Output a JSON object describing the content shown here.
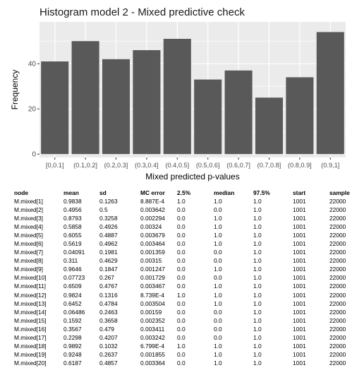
{
  "chart_data": {
    "type": "bar",
    "title": "Histogram model 2 - Mixed predictive check",
    "xlabel": "Mixed predicted p-values",
    "ylabel": "Frequency",
    "categories": [
      "[0,0.1]",
      "(0.1,0.2]",
      "(0.2,0.3]",
      "(0.3,0.4]",
      "(0.4,0.5]",
      "(0.5,0.6]",
      "(0.6,0.7]",
      "(0.7,0.8]",
      "(0.8,0.9]",
      "(0.9,1]"
    ],
    "values": [
      41,
      50,
      42,
      46,
      51,
      33,
      37,
      25,
      34,
      54
    ],
    "ylim": [
      -1.5,
      58.5
    ],
    "yticks": [
      0,
      20,
      40
    ],
    "grid": true,
    "legend": "none",
    "colors": {
      "bar": "#595959",
      "panel": "#ebebeb",
      "grid": "#ffffff",
      "tick_text": "#4d4d4d"
    }
  },
  "table": {
    "headers": [
      "node",
      "mean",
      "sd",
      "MC error",
      "2.5%",
      "median",
      "97.5%",
      "start",
      "sample"
    ],
    "rows": [
      [
        "M.mixed[1]",
        "0.9838",
        "0.1263",
        "8.887E-4",
        "1.0",
        "1.0",
        "1.0",
        "1001",
        "22000"
      ],
      [
        "M.mixed[2]",
        "0.4956",
        "0.5",
        "0.003642",
        "0.0",
        "0.0",
        "1.0",
        "1001",
        "22000"
      ],
      [
        "M.mixed[3]",
        "0.8793",
        "0.3258",
        "0.002294",
        "0.0",
        "1.0",
        "1.0",
        "1001",
        "22000"
      ],
      [
        "M.mixed[4]",
        "0.5858",
        "0.4926",
        "0.00324",
        "0.0",
        "1.0",
        "1.0",
        "1001",
        "22000"
      ],
      [
        "M.mixed[5]",
        "0.6055",
        "0.4887",
        "0.003679",
        "0.0",
        "1.0",
        "1.0",
        "1001",
        "22000"
      ],
      [
        "M.mixed[6]",
        "0.5619",
        "0.4962",
        "0.003464",
        "0.0",
        "1.0",
        "1.0",
        "1001",
        "22000"
      ],
      [
        "M.mixed[7]",
        "0.04091",
        "0.1981",
        "0.001359",
        "0.0",
        "0.0",
        "1.0",
        "1001",
        "22000"
      ],
      [
        "M.mixed[8]",
        "0.311",
        "0.4629",
        "0.00315",
        "0.0",
        "0.0",
        "1.0",
        "1001",
        "22000"
      ],
      [
        "M.mixed[9]",
        "0.9646",
        "0.1847",
        "0.001247",
        "0.0",
        "1.0",
        "1.0",
        "1001",
        "22000"
      ],
      [
        "M.mixed[10]",
        "0.07723",
        "0.267",
        "0.001729",
        "0.0",
        "0.0",
        "1.0",
        "1001",
        "22000"
      ],
      [
        "M.mixed[11]",
        "0.6509",
        "0.4767",
        "0.003467",
        "0.0",
        "1.0",
        "1.0",
        "1001",
        "22000"
      ],
      [
        "M.mixed[12]",
        "0.9824",
        "0.1316",
        "8.739E-4",
        "1.0",
        "1.0",
        "1.0",
        "1001",
        "22000"
      ],
      [
        "M.mixed[13]",
        "0.6452",
        "0.4784",
        "0.003504",
        "0.0",
        "1.0",
        "1.0",
        "1001",
        "22000"
      ],
      [
        "M.mixed[14]",
        "0.06486",
        "0.2463",
        "0.00159",
        "0.0",
        "0.0",
        "1.0",
        "1001",
        "22000"
      ],
      [
        "M.mixed[15]",
        "0.1592",
        "0.3658",
        "0.002352",
        "0.0",
        "0.0",
        "1.0",
        "1001",
        "22000"
      ],
      [
        "M.mixed[16]",
        "0.3567",
        "0.479",
        "0.003411",
        "0.0",
        "0.0",
        "1.0",
        "1001",
        "22000"
      ],
      [
        "M.mixed[17]",
        "0.2298",
        "0.4207",
        "0.003242",
        "0.0",
        "0.0",
        "1.0",
        "1001",
        "22000"
      ],
      [
        "M.mixed[18]",
        "0.9892",
        "0.1032",
        "6.799E-4",
        "1.0",
        "1.0",
        "1.0",
        "1001",
        "22000"
      ],
      [
        "M.mixed[19]",
        "0.9248",
        "0.2637",
        "0.001855",
        "0.0",
        "1.0",
        "1.0",
        "1001",
        "22000"
      ],
      [
        "M.mixed[20]",
        "0.6187",
        "0.4857",
        "0.003364",
        "0.0",
        "1.0",
        "1.0",
        "1001",
        "22000"
      ]
    ]
  }
}
